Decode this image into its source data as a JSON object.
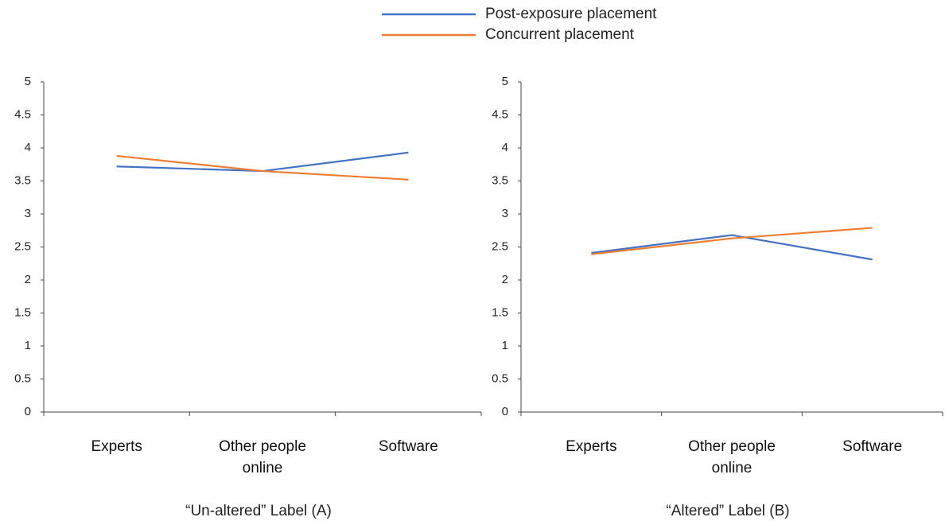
{
  "chart_data": [
    {
      "type": "line",
      "title": "“Un-altered” Label (A)",
      "categories": [
        "Experts",
        "Other people online",
        "Software"
      ],
      "ylim": [
        0,
        5
      ],
      "yticks": [
        0,
        0.5,
        1,
        1.5,
        2,
        2.5,
        3,
        3.5,
        4,
        4.5,
        5
      ],
      "legend": "top",
      "series": [
        {
          "name": "Post-exposure placement",
          "color": "#4472c4",
          "values": [
            3.72,
            3.65,
            3.93
          ]
        },
        {
          "name": "Concurrent placement",
          "color": "#ed7d31",
          "values": [
            3.88,
            3.65,
            3.52
          ]
        }
      ]
    },
    {
      "type": "line",
      "title": "“Altered” Label (B)",
      "categories": [
        "Experts",
        "Other people online",
        "Software"
      ],
      "ylim": [
        0,
        5
      ],
      "yticks": [
        0,
        0.5,
        1,
        1.5,
        2,
        2.5,
        3,
        3.5,
        4,
        4.5,
        5
      ],
      "series": [
        {
          "name": "Post-exposure placement",
          "color": "#4472c4",
          "values": [
            2.41,
            2.68,
            2.31
          ]
        },
        {
          "name": "Concurrent placement",
          "color": "#ed7d31",
          "values": [
            2.39,
            2.63,
            2.79
          ]
        }
      ]
    }
  ]
}
